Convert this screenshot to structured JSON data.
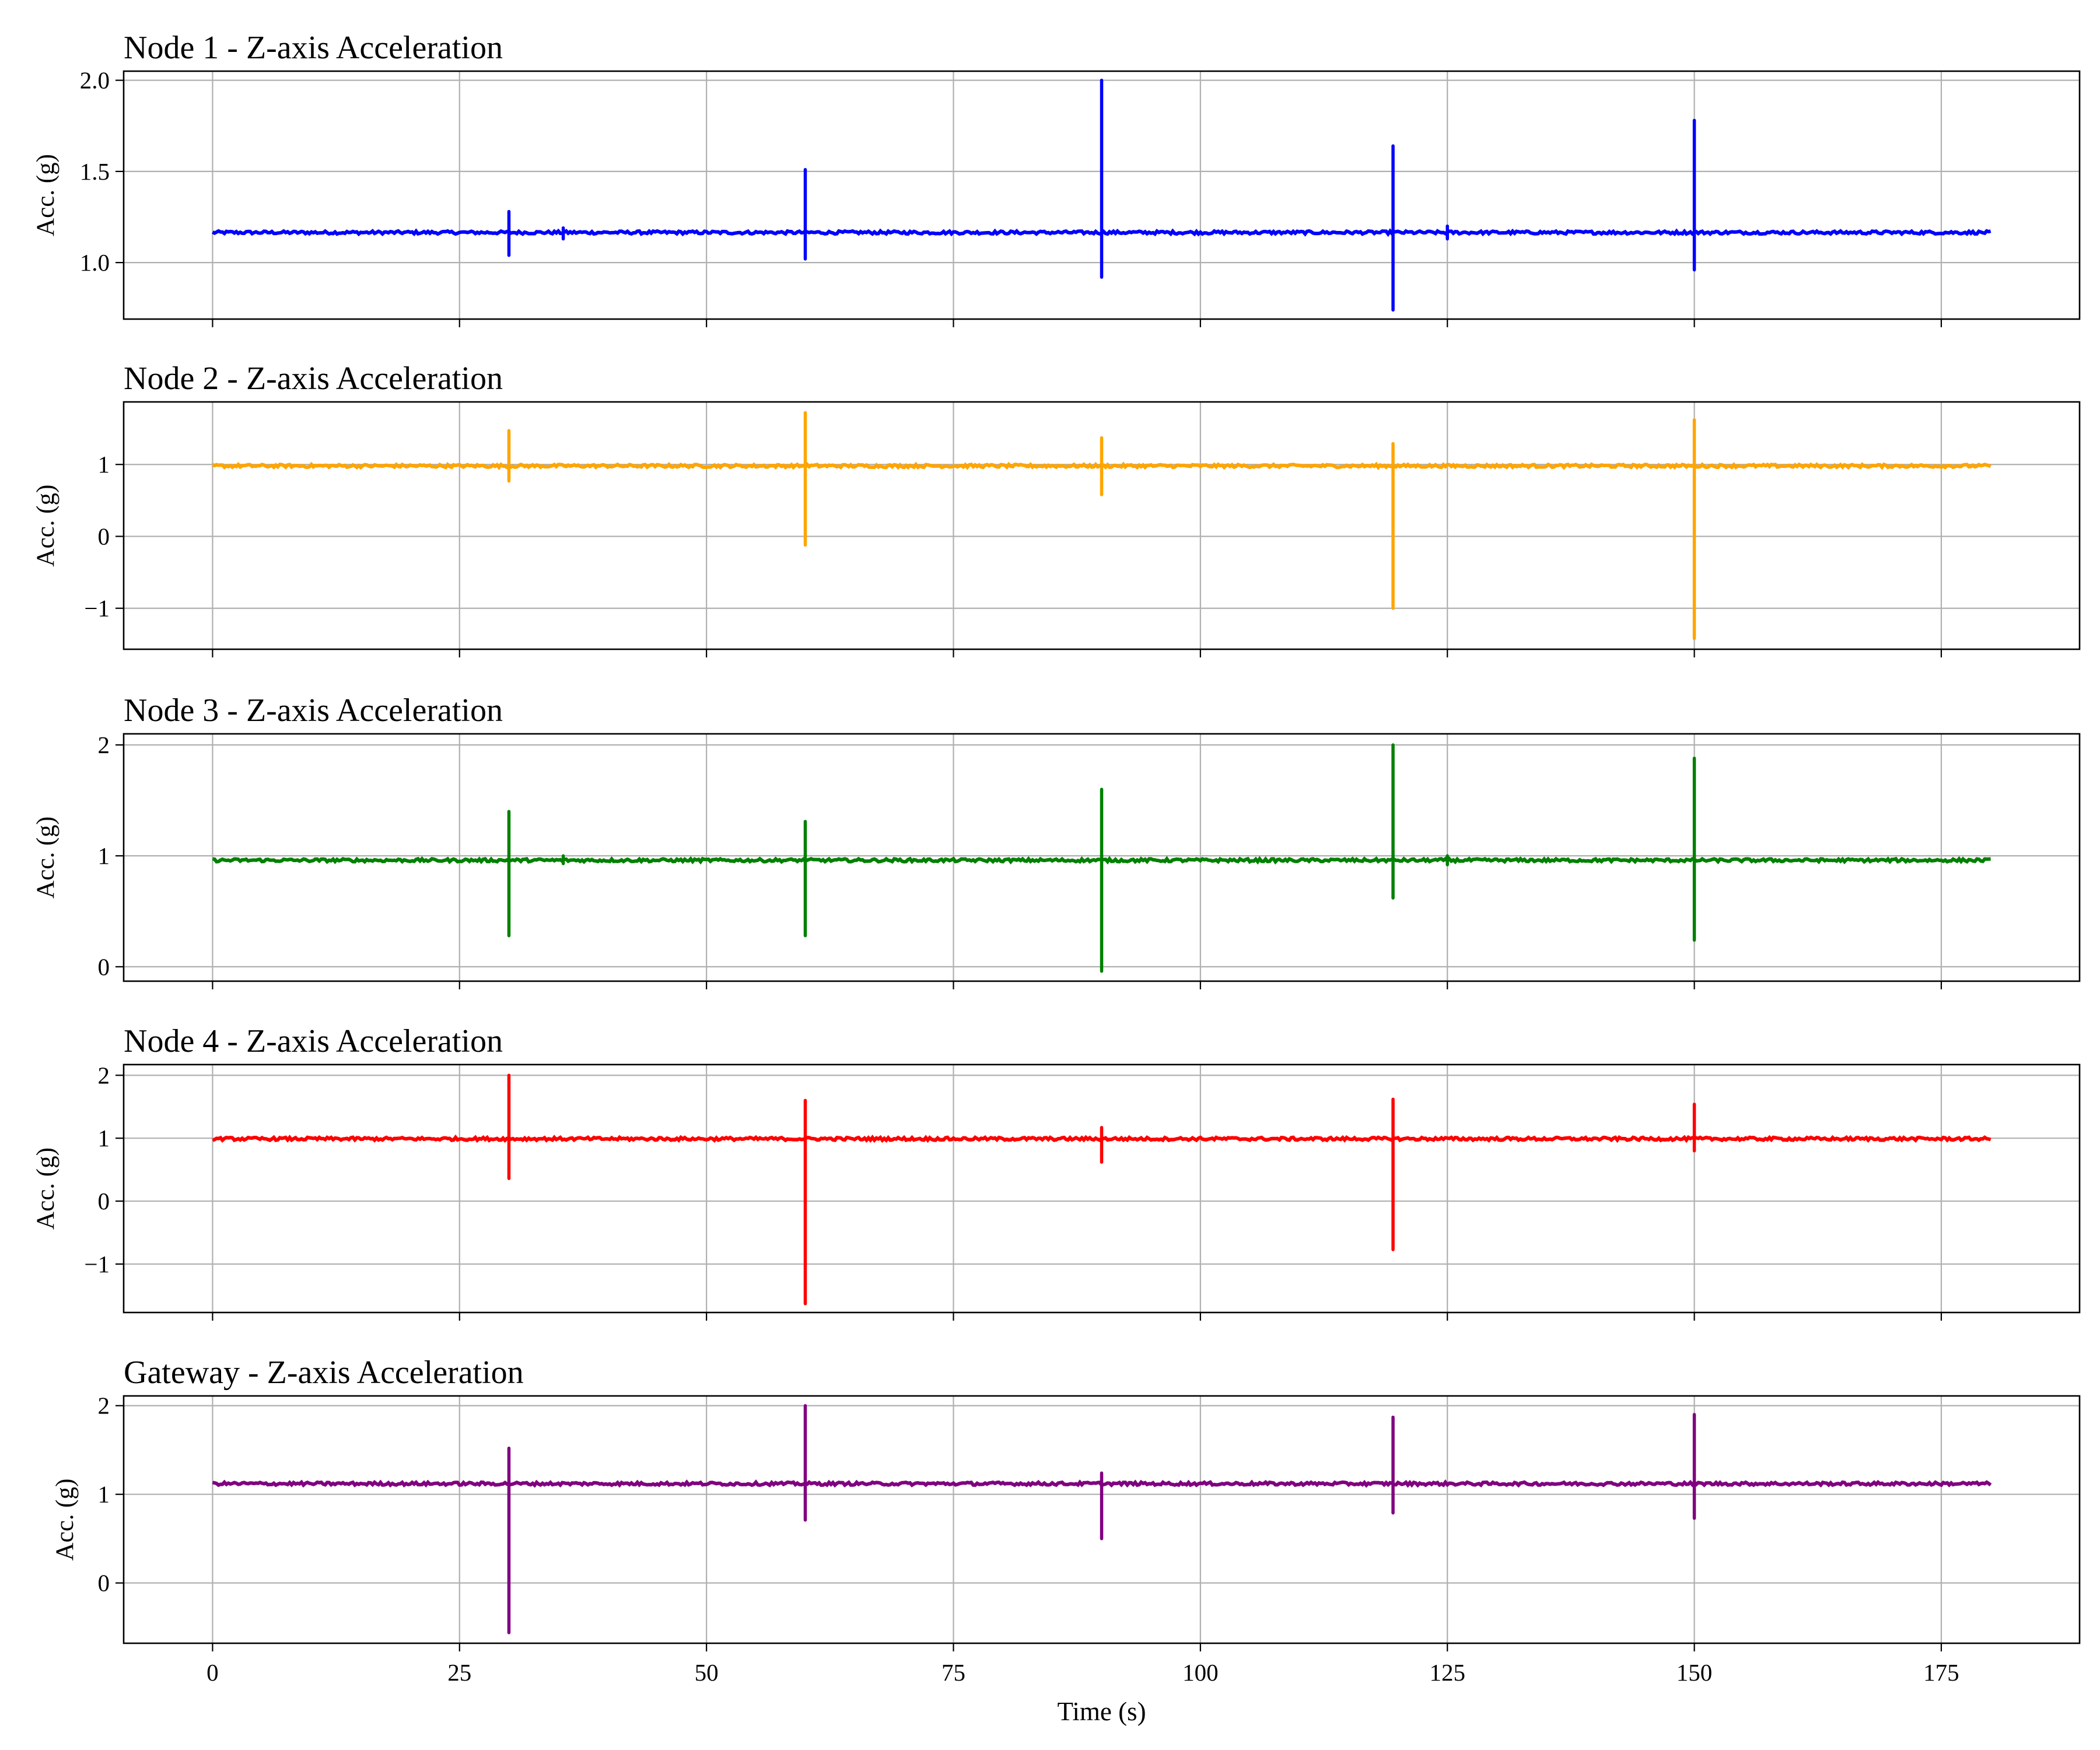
{
  "chart_data": [
    {
      "type": "line",
      "title": "Node 1 - Z-axis Acceleration",
      "ylabel": "Acc. (g)",
      "xlabel": "",
      "xlim": [
        -9,
        189
      ],
      "ylim": [
        0.69,
        2.05
      ],
      "xticks": [
        0,
        25,
        50,
        75,
        100,
        125,
        150,
        175
      ],
      "yticks": [
        1.0,
        1.5,
        2.0
      ],
      "ytick_labels": [
        "1.0",
        "1.5",
        "2.0"
      ],
      "grid": true,
      "color": "#0000ff",
      "baseline": 1.165,
      "x_start": 0,
      "x_end": 180,
      "events": [
        {
          "x": 30,
          "max": 1.28,
          "min": 1.04
        },
        {
          "x": 35.5,
          "max": 1.19,
          "min": 1.13
        },
        {
          "x": 60,
          "max": 1.51,
          "min": 1.02
        },
        {
          "x": 90,
          "max": 2.0,
          "min": 0.92
        },
        {
          "x": 119.5,
          "max": 1.64,
          "min": 0.74
        },
        {
          "x": 125,
          "max": 1.2,
          "min": 1.13
        },
        {
          "x": 150,
          "max": 1.78,
          "min": 0.96
        }
      ]
    },
    {
      "type": "line",
      "title": "Node 2 - Z-axis Acceleration",
      "ylabel": "Acc. (g)",
      "xlabel": "",
      "xlim": [
        -9,
        189
      ],
      "ylim": [
        -1.57,
        1.87
      ],
      "xticks": [
        0,
        25,
        50,
        75,
        100,
        125,
        150,
        175
      ],
      "yticks": [
        -1,
        0,
        1
      ],
      "ytick_labels": [
        "−1",
        "0",
        "1"
      ],
      "grid": true,
      "color": "#ffa500",
      "baseline": 0.98,
      "x_start": 0,
      "x_end": 180,
      "events": [
        {
          "x": 30,
          "max": 1.47,
          "min": 0.77
        },
        {
          "x": 60,
          "max": 1.72,
          "min": -0.12
        },
        {
          "x": 90,
          "max": 1.37,
          "min": 0.58
        },
        {
          "x": 119.5,
          "max": 1.29,
          "min": -1.0
        },
        {
          "x": 150,
          "max": 1.62,
          "min": -1.42
        }
      ]
    },
    {
      "type": "line",
      "title": "Node 3 - Z-axis Acceleration",
      "ylabel": "Acc. (g)",
      "xlabel": "",
      "xlim": [
        -9,
        189
      ],
      "ylim": [
        -0.13,
        2.1
      ],
      "xticks": [
        0,
        25,
        50,
        75,
        100,
        125,
        150,
        175
      ],
      "yticks": [
        0,
        1,
        2
      ],
      "ytick_labels": [
        "0",
        "1",
        "2"
      ],
      "grid": true,
      "color": "#008000",
      "baseline": 0.96,
      "x_start": 0,
      "x_end": 180,
      "events": [
        {
          "x": 30,
          "max": 1.4,
          "min": 0.28
        },
        {
          "x": 35.5,
          "max": 1.0,
          "min": 0.93
        },
        {
          "x": 60,
          "max": 1.31,
          "min": 0.28
        },
        {
          "x": 90,
          "max": 1.6,
          "min": -0.04
        },
        {
          "x": 119.5,
          "max": 2.0,
          "min": 0.62
        },
        {
          "x": 125,
          "max": 1.0,
          "min": 0.92
        },
        {
          "x": 150,
          "max": 1.88,
          "min": 0.24
        }
      ]
    },
    {
      "type": "line",
      "title": "Node 4 - Z-axis Acceleration",
      "ylabel": "Acc. (g)",
      "xlabel": "",
      "xlim": [
        -9,
        189
      ],
      "ylim": [
        -1.77,
        2.17
      ],
      "xticks": [
        0,
        25,
        50,
        75,
        100,
        125,
        150,
        175
      ],
      "yticks": [
        -1,
        0,
        1,
        2
      ],
      "ytick_labels": [
        "−1",
        "0",
        "1",
        "2"
      ],
      "grid": true,
      "color": "#ff0000",
      "baseline": 0.99,
      "x_start": 0,
      "x_end": 180,
      "events": [
        {
          "x": 30,
          "max": 2.0,
          "min": 0.36
        },
        {
          "x": 60,
          "max": 1.6,
          "min": -1.63
        },
        {
          "x": 90,
          "max": 1.17,
          "min": 0.62
        },
        {
          "x": 119.5,
          "max": 1.62,
          "min": -0.77
        },
        {
          "x": 150,
          "max": 1.54,
          "min": 0.8
        }
      ]
    },
    {
      "type": "line",
      "title": "Gateway - Z-axis Acceleration",
      "ylabel": "Acc. (g)",
      "xlabel": "Time (s)",
      "xlim": [
        -9,
        189
      ],
      "ylim": [
        -0.68,
        2.11
      ],
      "xticks": [
        0,
        25,
        50,
        75,
        100,
        125,
        150,
        175
      ],
      "xtick_labels": [
        "0",
        "25",
        "50",
        "75",
        "100",
        "125",
        "150",
        "175"
      ],
      "yticks": [
        0,
        1,
        2
      ],
      "ytick_labels": [
        "0",
        "1",
        "2"
      ],
      "grid": true,
      "color": "#800080",
      "baseline": 1.12,
      "x_start": 0,
      "x_end": 180,
      "events": [
        {
          "x": 30,
          "max": 1.52,
          "min": -0.56
        },
        {
          "x": 60,
          "max": 2.0,
          "min": 0.71
        },
        {
          "x": 90,
          "max": 1.24,
          "min": 0.5
        },
        {
          "x": 119.5,
          "max": 1.87,
          "min": 0.79
        },
        {
          "x": 150,
          "max": 1.9,
          "min": 0.73
        }
      ]
    }
  ]
}
